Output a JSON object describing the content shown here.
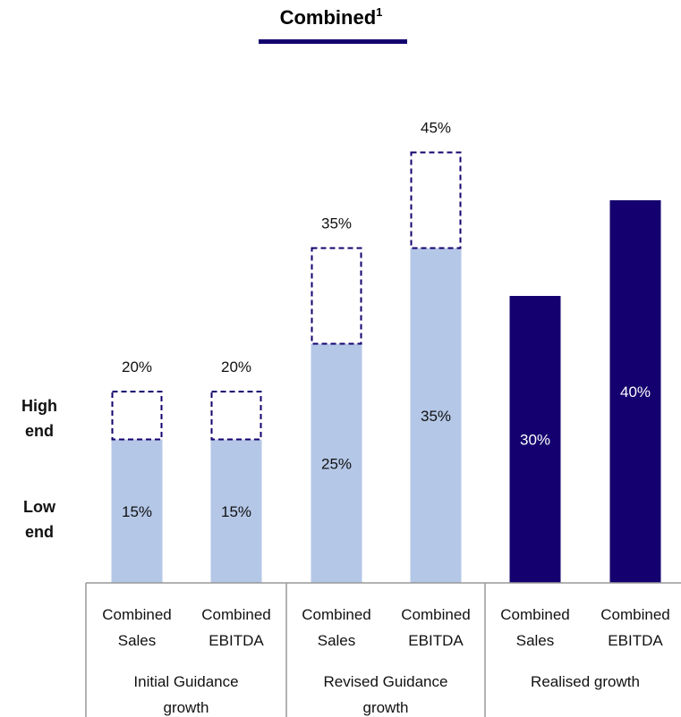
{
  "chart_data": {
    "type": "bar",
    "title": "Combined",
    "title_superscript": "1",
    "side_labels": [
      {
        "line1": "High",
        "line2": "end"
      },
      {
        "line1": "Low",
        "line2": "end"
      }
    ],
    "groups": [
      {
        "line1": "Initial Guidance",
        "line2": "growth"
      },
      {
        "line1": "Revised Guidance",
        "line2": "growth"
      },
      {
        "line1": "Realised growth",
        "line2": ""
      }
    ],
    "categories": [
      {
        "line1": "Combined",
        "line2": "Sales"
      },
      {
        "line1": "Combined",
        "line2": "EBITDA"
      },
      {
        "line1": "Combined",
        "line2": "Sales"
      },
      {
        "line1": "Combined",
        "line2": "EBITDA"
      },
      {
        "line1": "Combined",
        "line2": "Sales"
      },
      {
        "line1": "Combined",
        "line2": "EBITDA"
      }
    ],
    "bars": [
      {
        "group": 0,
        "low": 15,
        "high": 20,
        "low_label": "15%",
        "high_label": "20%",
        "kind": "guidance"
      },
      {
        "group": 0,
        "low": 15,
        "high": 20,
        "low_label": "15%",
        "high_label": "20%",
        "kind": "guidance"
      },
      {
        "group": 1,
        "low": 25,
        "high": 35,
        "low_label": "25%",
        "high_label": "35%",
        "kind": "guidance"
      },
      {
        "group": 1,
        "low": 35,
        "high": 45,
        "low_label": "35%",
        "high_label": "45%",
        "kind": "guidance"
      },
      {
        "group": 2,
        "low": 30,
        "high": null,
        "low_label": "30%",
        "high_label": "",
        "kind": "realised"
      },
      {
        "group": 2,
        "low": 40,
        "high": null,
        "low_label": "40%",
        "high_label": "",
        "kind": "realised"
      }
    ],
    "ylim": [
      0,
      50
    ],
    "colors": {
      "guidance": "#b4c7e7",
      "realised": "#14006e",
      "dashed_outline": "#14006e",
      "title_underline": "#14006e",
      "axis": "#999999"
    }
  }
}
